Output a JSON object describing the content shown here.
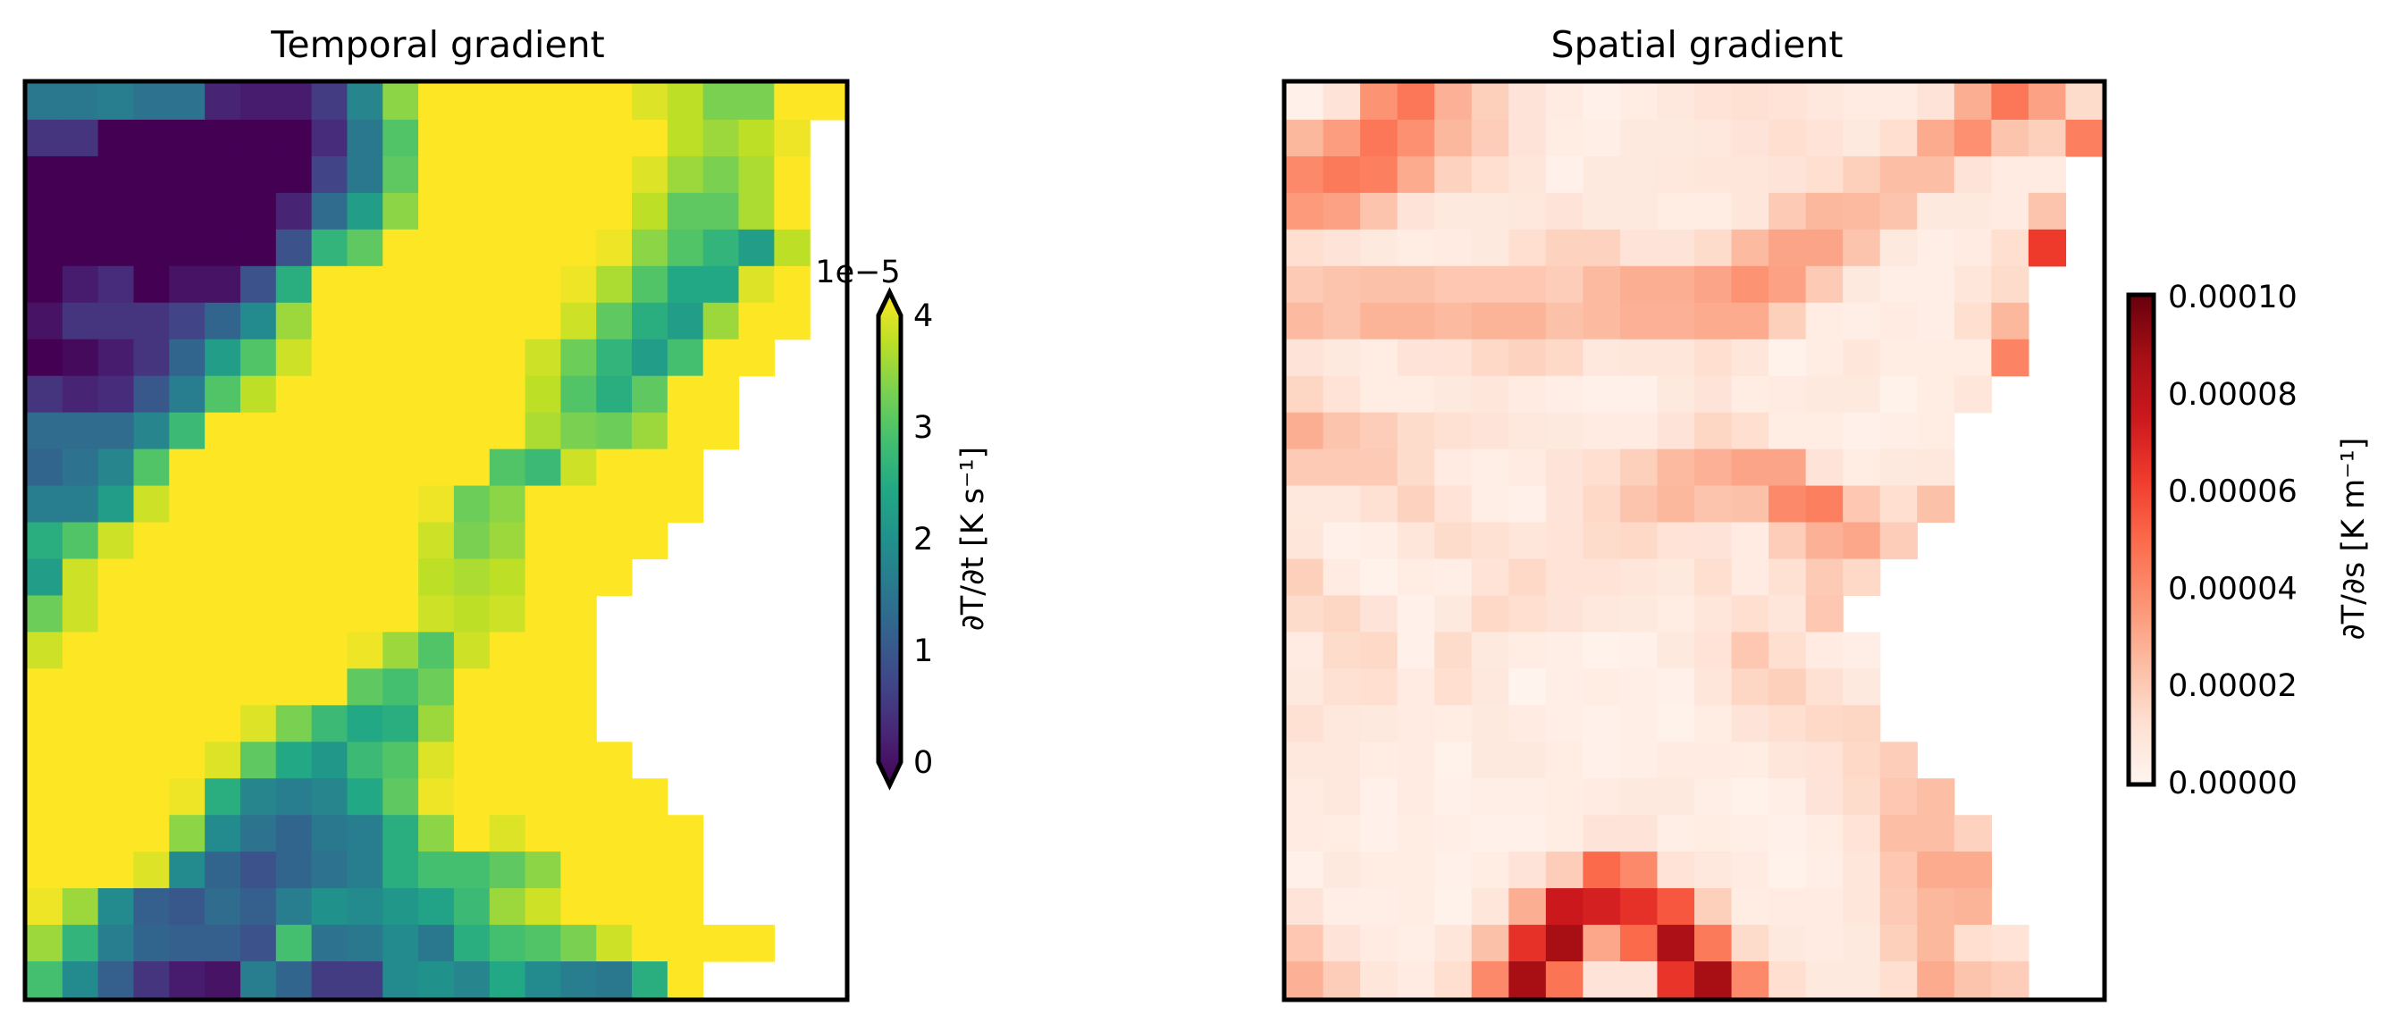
{
  "chart_data": [
    {
      "type": "heatmap",
      "title": "Temporal gradient",
      "colormap": "viridis",
      "value_scale": 1e-05,
      "clim": [
        0,
        4
      ],
      "colorbar": {
        "offset_text": "1e−5",
        "label": "∂T/∂t [K s⁻¹]",
        "ticks": [
          "0",
          "1",
          "2",
          "3",
          "4"
        ],
        "tick_values": [
          0,
          1,
          2,
          3,
          4
        ],
        "extend": "both"
      },
      "columns": 23,
      "values": [
        [
          1.6,
          1.6,
          1.7,
          1.5,
          1.5,
          0.4,
          0.3,
          0.3,
          0.7,
          1.8,
          3.3,
          4,
          4,
          4,
          4,
          4,
          4,
          3.8,
          3.6,
          3.2,
          3.2,
          4,
          4
        ],
        [
          0.6,
          0.6,
          0,
          0,
          0,
          0,
          0,
          0,
          0.5,
          1.6,
          2.9,
          4,
          4,
          4,
          4,
          4,
          4,
          4,
          3.6,
          3.4,
          3.6,
          3.9,
          null
        ],
        [
          0,
          0,
          0,
          0,
          0,
          0,
          0,
          0,
          0.8,
          1.6,
          3.0,
          4,
          4,
          4,
          4,
          4,
          4,
          3.8,
          3.4,
          3.2,
          3.5,
          4,
          null
        ],
        [
          0,
          0,
          0,
          0,
          0,
          0,
          0,
          0.4,
          1.4,
          2.2,
          3.3,
          4,
          4,
          4,
          4,
          4,
          4,
          3.6,
          3.0,
          3.0,
          3.5,
          4,
          null
        ],
        [
          0,
          0,
          0,
          0,
          0,
          0,
          0,
          1.0,
          2.6,
          3.0,
          4,
          4,
          4,
          4,
          4,
          4,
          3.9,
          3.3,
          2.9,
          2.6,
          2.2,
          3.6,
          null
        ],
        [
          0,
          0.3,
          0.5,
          0,
          0.2,
          0.2,
          1.0,
          2.5,
          4,
          4,
          4,
          4,
          4,
          4,
          4,
          3.9,
          3.5,
          2.9,
          2.4,
          2.4,
          3.8,
          4,
          null
        ],
        [
          0.2,
          0.6,
          0.6,
          0.6,
          0.8,
          1.3,
          1.9,
          3.4,
          4,
          4,
          4,
          4,
          4,
          4,
          4,
          3.7,
          3.0,
          2.5,
          2.2,
          3.4,
          4,
          4,
          null
        ],
        [
          0,
          0.1,
          0.3,
          0.6,
          1.3,
          2.2,
          2.9,
          3.7,
          4,
          4,
          4,
          4,
          4,
          4,
          3.7,
          3.1,
          2.6,
          2.2,
          2.8,
          4,
          4,
          null,
          null
        ],
        [
          0.6,
          0.4,
          0.5,
          1.1,
          1.7,
          2.9,
          3.6,
          4,
          4,
          4,
          4,
          4,
          4,
          4,
          3.6,
          2.9,
          2.5,
          3.0,
          4,
          4,
          null,
          null,
          null
        ],
        [
          1.4,
          1.4,
          1.4,
          1.8,
          2.7,
          4,
          4,
          4,
          4,
          4,
          4,
          4,
          4,
          4,
          3.5,
          3.2,
          3.1,
          3.4,
          4,
          4,
          null,
          null,
          null
        ],
        [
          1.3,
          1.5,
          1.8,
          2.9,
          4,
          4,
          4,
          4,
          4,
          4,
          4,
          4,
          4,
          2.9,
          2.7,
          3.7,
          4,
          4,
          4,
          null,
          null,
          null,
          null
        ],
        [
          1.7,
          1.7,
          2.2,
          3.7,
          4,
          4,
          4,
          4,
          4,
          4,
          4,
          3.9,
          3.1,
          3.3,
          4,
          4,
          4,
          4,
          4,
          null,
          null,
          null,
          null
        ],
        [
          2.5,
          2.9,
          3.7,
          4,
          4,
          4,
          4,
          4,
          4,
          4,
          4,
          3.7,
          3.2,
          3.4,
          4,
          4,
          4,
          4,
          null,
          null,
          null,
          null,
          null
        ],
        [
          2.2,
          3.7,
          4,
          4,
          4,
          4,
          4,
          4,
          4,
          4,
          4,
          3.6,
          3.5,
          3.6,
          4,
          4,
          4,
          null,
          null,
          null,
          null,
          null,
          null
        ],
        [
          3.1,
          3.7,
          4,
          4,
          4,
          4,
          4,
          4,
          4,
          4,
          4,
          3.7,
          3.6,
          3.7,
          4,
          4,
          null,
          null,
          null,
          null,
          null,
          null,
          null
        ],
        [
          3.7,
          4,
          4,
          4,
          4,
          4,
          4,
          4,
          4,
          3.9,
          3.4,
          2.9,
          3.7,
          4,
          4,
          4,
          null,
          null,
          null,
          null,
          null,
          null,
          null
        ],
        [
          4,
          4,
          4,
          4,
          4,
          4,
          4,
          4,
          4,
          3.0,
          2.8,
          3.1,
          4,
          4,
          4,
          4,
          null,
          null,
          null,
          null,
          null,
          null,
          null
        ],
        [
          4,
          4,
          4,
          4,
          4,
          4,
          3.8,
          3.2,
          2.7,
          2.4,
          2.5,
          3.4,
          4,
          4,
          4,
          4,
          null,
          null,
          null,
          null,
          null,
          null,
          null
        ],
        [
          4,
          4,
          4,
          4,
          4,
          3.8,
          3.0,
          2.4,
          2.1,
          2.7,
          2.9,
          3.8,
          4,
          4,
          4,
          4,
          4,
          null,
          null,
          null,
          null,
          null,
          null
        ],
        [
          4,
          4,
          4,
          4,
          3.9,
          2.5,
          1.8,
          1.7,
          1.8,
          2.4,
          3.0,
          3.9,
          4,
          4,
          4,
          4,
          4,
          4,
          null,
          null,
          null,
          null,
          null
        ],
        [
          4,
          4,
          4,
          4,
          3.3,
          1.9,
          1.5,
          1.3,
          1.6,
          1.7,
          2.5,
          3.3,
          4,
          3.8,
          4,
          4,
          4,
          4,
          4,
          null,
          null,
          null,
          null
        ],
        [
          4,
          4,
          4,
          3.8,
          1.9,
          1.3,
          1.0,
          1.3,
          1.5,
          1.7,
          2.5,
          2.8,
          2.8,
          3.0,
          3.3,
          4,
          4,
          4,
          4,
          null,
          null,
          null,
          null
        ],
        [
          3.9,
          3.4,
          1.9,
          1.2,
          1.1,
          1.4,
          1.2,
          1.7,
          2.0,
          1.9,
          2.1,
          2.3,
          2.7,
          3.4,
          3.7,
          4,
          4,
          4,
          4,
          null,
          null,
          null,
          null
        ],
        [
          3.4,
          2.6,
          1.7,
          1.3,
          1.2,
          1.2,
          1.0,
          2.8,
          1.5,
          1.6,
          1.9,
          1.6,
          2.5,
          2.8,
          2.9,
          3.2,
          3.7,
          4,
          4,
          4,
          4,
          null,
          null
        ],
        [
          2.8,
          1.9,
          1.2,
          0.6,
          0.3,
          0.2,
          1.7,
          1.3,
          0.7,
          0.7,
          1.9,
          2.0,
          1.8,
          2.4,
          1.9,
          1.7,
          1.6,
          2.5,
          4,
          null,
          null,
          null,
          null
        ]
      ]
    },
    {
      "type": "heatmap",
      "title": "Spatial gradient",
      "colormap": "Reds",
      "value_scale": 1e-05,
      "clim": [
        0,
        10
      ],
      "colorbar": {
        "label": "∂T/∂s [K m⁻¹]",
        "ticks": [
          "0.00000",
          "0.00002",
          "0.00004",
          "0.00006",
          "0.00008",
          "0.00010"
        ],
        "tick_values": [
          0,
          2,
          4,
          6,
          8,
          10
        ],
        "extend": "neither"
      },
      "columns": 22,
      "values": [
        [
          0.3,
          1.0,
          3.7,
          4.6,
          2.8,
          1.8,
          1.0,
          0.6,
          0.3,
          0.5,
          0.8,
          1.1,
          1.2,
          1.1,
          0.8,
          0.6,
          0.6,
          1.0,
          2.9,
          4.6,
          3.3,
          1.4
        ],
        [
          2.6,
          3.4,
          4.6,
          3.8,
          2.6,
          1.9,
          1.0,
          0.5,
          0.4,
          0.7,
          0.7,
          0.8,
          1.0,
          1.3,
          1.1,
          0.7,
          1.3,
          3.0,
          3.8,
          2.2,
          1.8,
          4.3
        ],
        [
          4.0,
          4.5,
          4.3,
          3.0,
          1.7,
          1.3,
          0.9,
          0.3,
          0.7,
          0.7,
          0.8,
          0.9,
          0.9,
          1.0,
          1.3,
          1.8,
          2.4,
          2.4,
          1.0,
          0.6,
          0.6,
          null
        ],
        [
          3.5,
          3.3,
          2.2,
          1.0,
          0.7,
          0.7,
          0.8,
          1.0,
          0.7,
          0.7,
          0.5,
          0.5,
          0.9,
          2.0,
          2.6,
          2.5,
          2.2,
          0.7,
          0.7,
          0.6,
          2.2,
          null
        ],
        [
          1.3,
          1.0,
          0.7,
          0.5,
          0.6,
          0.7,
          1.3,
          1.7,
          1.7,
          1.0,
          1.0,
          1.4,
          2.5,
          3.2,
          3.2,
          2.2,
          0.7,
          0.4,
          0.6,
          1.3,
          6.3,
          null
        ],
        [
          2.0,
          2.2,
          2.3,
          2.3,
          2.1,
          2.1,
          2.1,
          1.9,
          2.5,
          2.9,
          2.9,
          3.2,
          3.7,
          3.3,
          2.0,
          0.7,
          0.4,
          0.4,
          0.9,
          1.4,
          null,
          null
        ],
        [
          2.5,
          2.2,
          2.7,
          2.7,
          2.5,
          2.7,
          2.7,
          2.3,
          2.5,
          2.8,
          2.8,
          3.0,
          3.0,
          1.8,
          0.5,
          0.4,
          0.6,
          0.4,
          1.3,
          2.6,
          null,
          null
        ],
        [
          1.0,
          0.7,
          0.5,
          1.0,
          1.1,
          1.5,
          1.7,
          1.5,
          0.8,
          0.9,
          0.9,
          1.3,
          0.9,
          0.2,
          0.5,
          0.9,
          0.5,
          0.5,
          0.5,
          4.2,
          null,
          null
        ],
        [
          1.6,
          1.1,
          0.5,
          0.5,
          0.7,
          0.9,
          0.6,
          0.4,
          0.3,
          0.3,
          0.7,
          1.0,
          0.5,
          0.6,
          0.7,
          0.7,
          0.2,
          0.5,
          0.9,
          null,
          null,
          null
        ],
        [
          2.9,
          2.2,
          1.9,
          1.4,
          1.2,
          1.0,
          0.8,
          0.7,
          0.6,
          0.6,
          1.0,
          1.6,
          1.3,
          0.5,
          0.5,
          0.3,
          0.4,
          0.5,
          null,
          null,
          null,
          null
        ],
        [
          2.0,
          2.0,
          2.0,
          1.4,
          0.6,
          0.4,
          0.6,
          1.0,
          1.3,
          1.8,
          2.5,
          2.8,
          3.2,
          3.2,
          1.0,
          0.5,
          0.7,
          0.8,
          null,
          null,
          null,
          null
        ],
        [
          0.8,
          0.8,
          1.2,
          1.7,
          1.1,
          0.4,
          0.3,
          1.0,
          1.5,
          2.2,
          2.6,
          2.2,
          2.3,
          4.0,
          4.3,
          2.1,
          1.3,
          2.3,
          null,
          null,
          null,
          null
        ],
        [
          0.9,
          0.3,
          0.4,
          0.9,
          1.4,
          1.2,
          0.9,
          1.1,
          1.4,
          1.5,
          1.1,
          1.0,
          0.6,
          1.9,
          2.8,
          3.1,
          1.9,
          null,
          null,
          null,
          null,
          null
        ],
        [
          1.8,
          0.6,
          0.2,
          0.5,
          0.4,
          1.1,
          1.5,
          1.1,
          1.1,
          0.9,
          0.7,
          1.3,
          0.6,
          1.2,
          2.0,
          1.5,
          null,
          null,
          null,
          null,
          null,
          null
        ],
        [
          1.4,
          1.6,
          1.0,
          0.3,
          0.7,
          1.5,
          1.3,
          1.0,
          0.8,
          0.7,
          0.5,
          0.9,
          1.3,
          0.9,
          2.1,
          null,
          null,
          null,
          null,
          null,
          null,
          null
        ],
        [
          0.6,
          1.4,
          1.5,
          0.3,
          1.4,
          0.7,
          0.5,
          0.4,
          0.2,
          0.3,
          0.7,
          1.1,
          2.1,
          1.3,
          0.6,
          0.4,
          null,
          null,
          null,
          null,
          null,
          null
        ],
        [
          0.7,
          1.2,
          1.3,
          0.6,
          1.3,
          0.8,
          0.1,
          0.4,
          0.5,
          0.4,
          0.3,
          0.9,
          1.6,
          1.8,
          1.2,
          0.7,
          null,
          null,
          null,
          null,
          null,
          null
        ],
        [
          1.2,
          0.8,
          0.7,
          0.6,
          0.5,
          0.7,
          0.6,
          0.4,
          0.3,
          0.4,
          0.2,
          0.5,
          1.0,
          1.3,
          1.5,
          1.6,
          null,
          null,
          null,
          null,
          null,
          null
        ],
        [
          0.8,
          0.8,
          0.5,
          0.6,
          0.2,
          0.7,
          0.7,
          0.5,
          0.3,
          0.4,
          0.6,
          0.6,
          0.5,
          0.9,
          1.1,
          1.5,
          1.9,
          null,
          null,
          null,
          null,
          null
        ],
        [
          0.6,
          0.8,
          0.3,
          0.6,
          0.3,
          0.4,
          0.4,
          0.5,
          0.6,
          0.7,
          0.7,
          0.4,
          0.2,
          0.4,
          1.0,
          1.4,
          2.1,
          2.4,
          null,
          null,
          null,
          null
        ],
        [
          0.6,
          0.5,
          0.3,
          0.5,
          0.4,
          0.3,
          0.3,
          0.5,
          1.0,
          1.0,
          0.4,
          0.5,
          0.4,
          0.3,
          0.5,
          1.1,
          2.4,
          2.4,
          1.7,
          null,
          null,
          null
        ],
        [
          0.3,
          0.7,
          0.5,
          0.5,
          0.3,
          0.5,
          1.0,
          1.9,
          5.0,
          4.0,
          1.1,
          0.8,
          0.6,
          0.2,
          0.4,
          0.9,
          2.1,
          3.0,
          3.0,
          null,
          null,
          null
        ],
        [
          1.0,
          0.4,
          0.4,
          0.5,
          0.2,
          0.9,
          2.9,
          7.5,
          7.2,
          6.6,
          5.5,
          1.8,
          0.5,
          0.6,
          0.6,
          0.9,
          2.0,
          2.6,
          2.7,
          null,
          null,
          null
        ],
        [
          2.1,
          1.0,
          0.6,
          0.4,
          0.9,
          2.3,
          6.6,
          8.7,
          3.1,
          5.0,
          8.5,
          4.5,
          1.4,
          0.7,
          0.6,
          0.7,
          1.8,
          2.6,
          1.3,
          1.1,
          null,
          null
        ],
        [
          2.8,
          1.9,
          0.9,
          0.6,
          1.3,
          4.0,
          8.7,
          4.7,
          1.0,
          1.0,
          6.5,
          8.7,
          4.0,
          1.3,
          0.7,
          0.7,
          1.3,
          3.0,
          2.2,
          1.9,
          null,
          null
        ]
      ]
    }
  ]
}
